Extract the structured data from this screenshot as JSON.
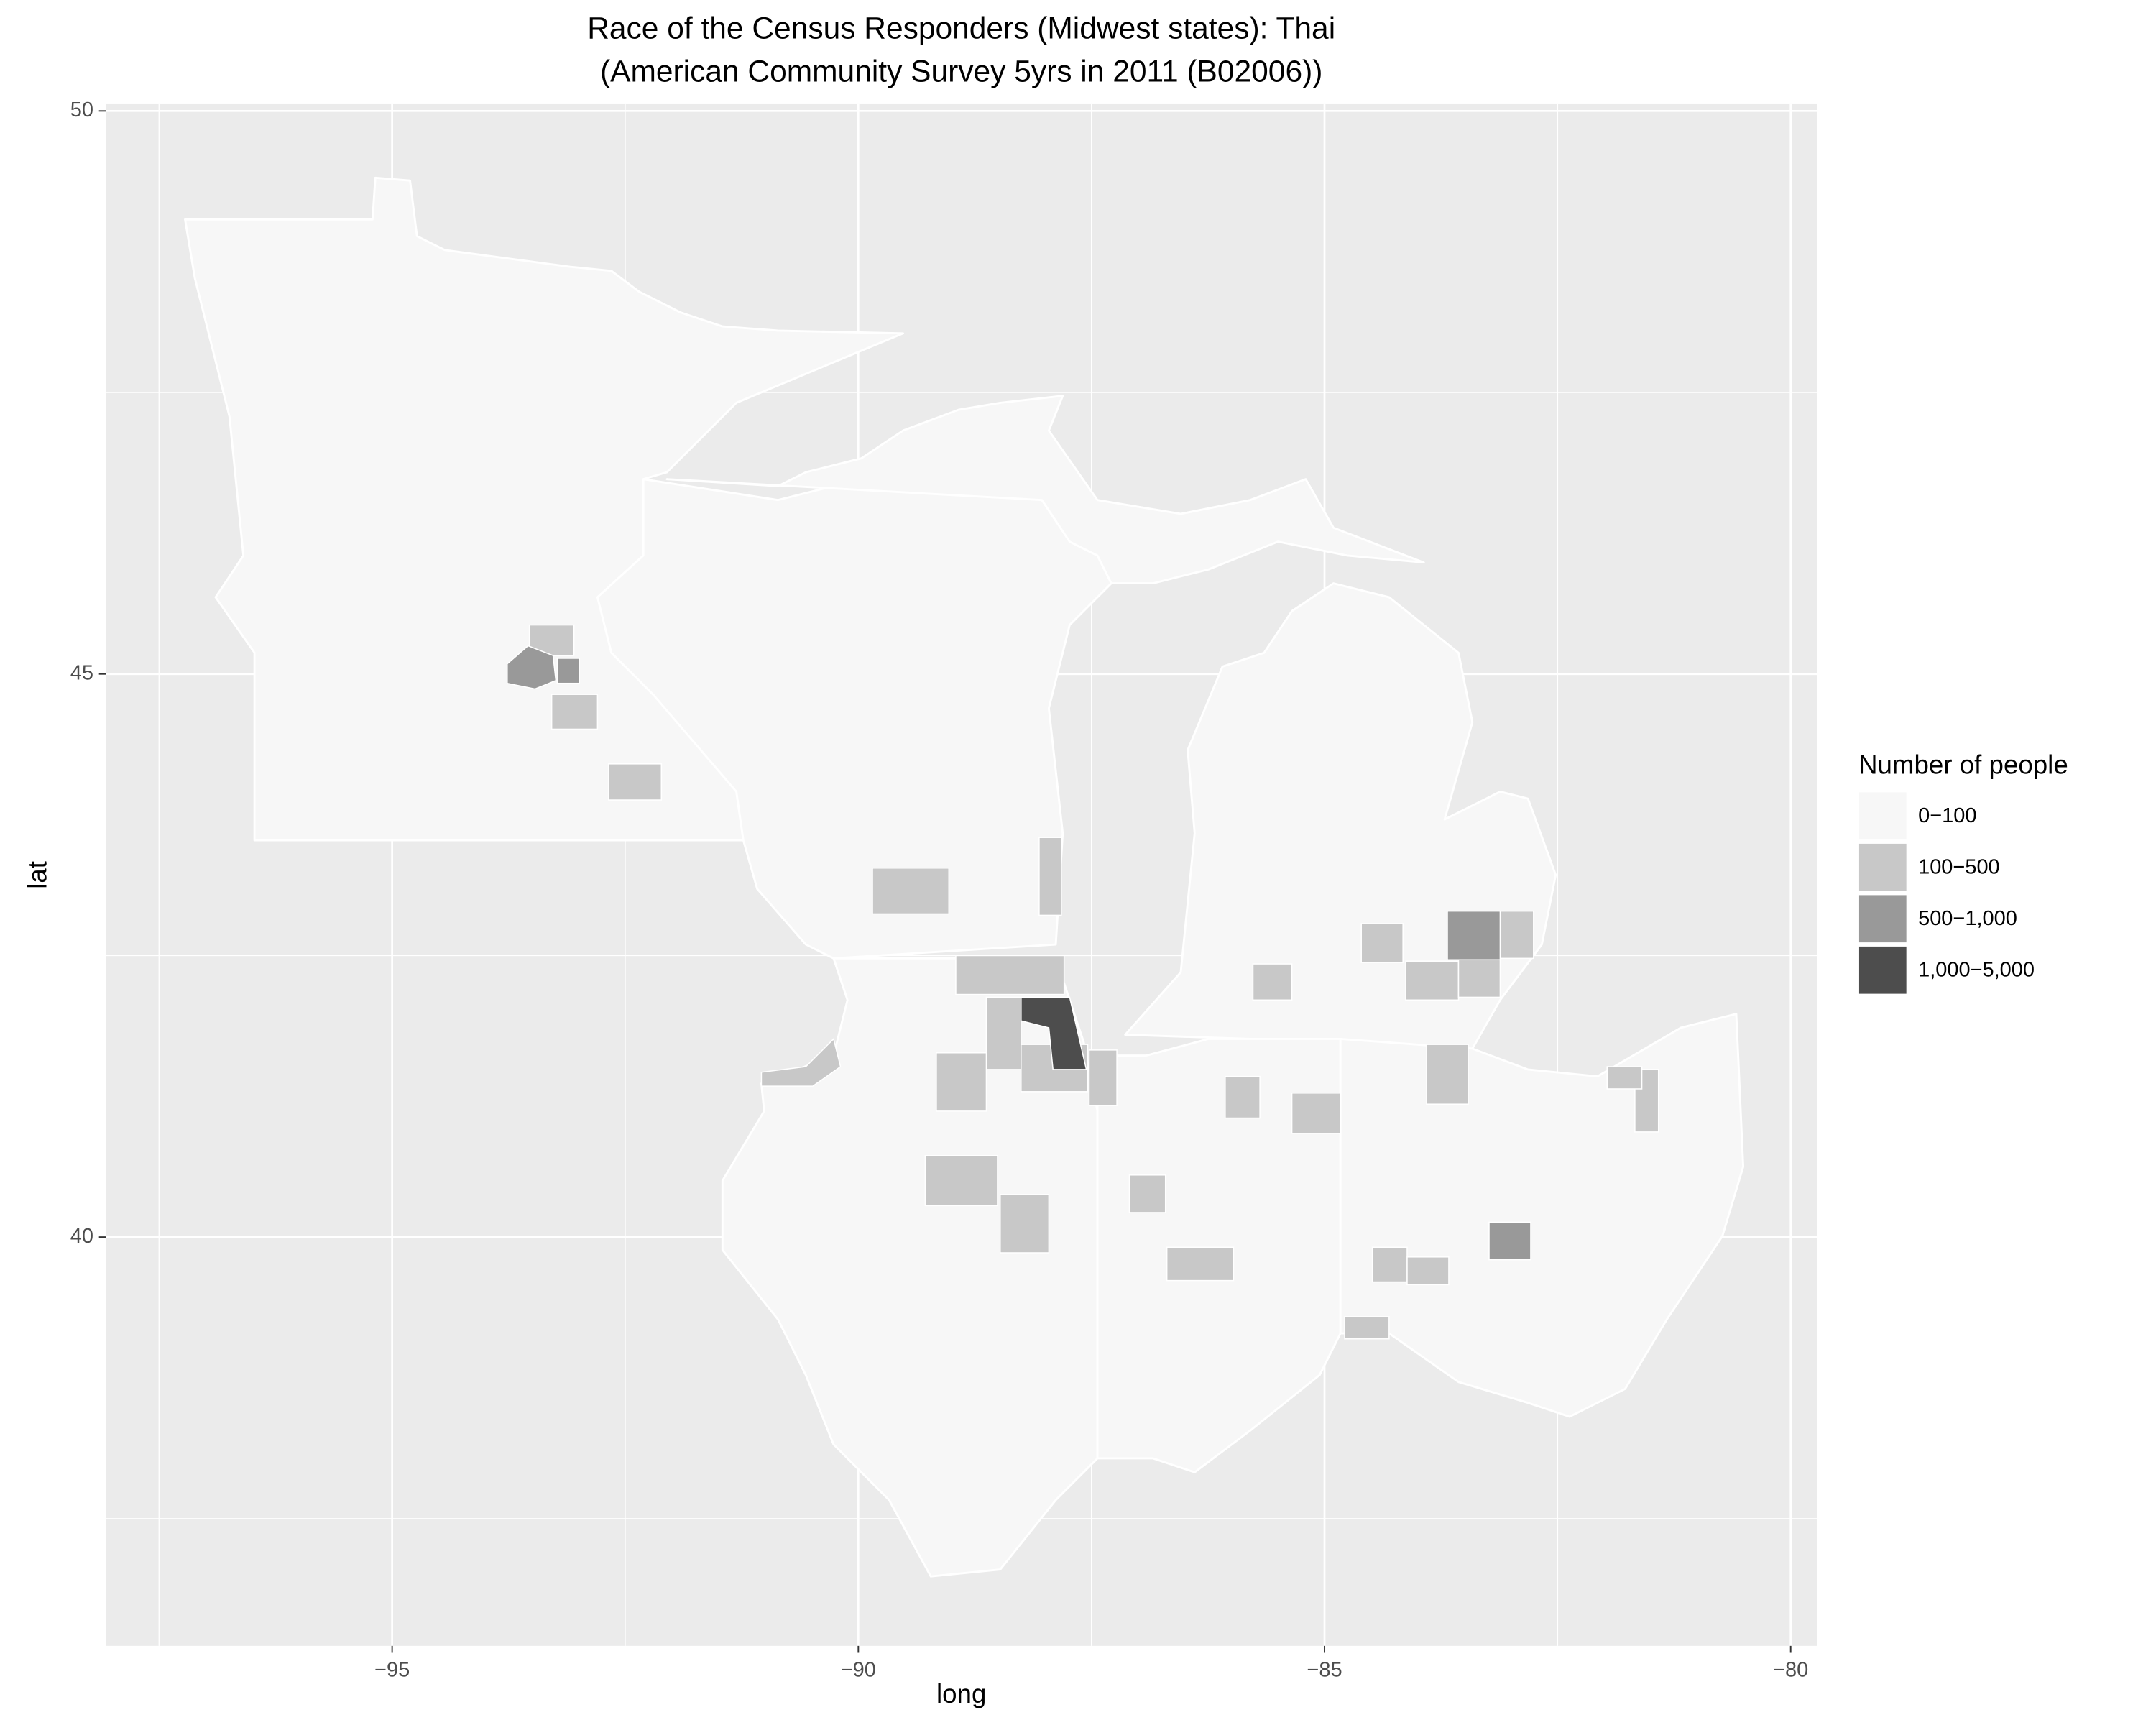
{
  "chart_data": {
    "type": "map",
    "title": "Race of the Census Responders (Midwest states): Thai",
    "subtitle": "(American Community Survey 5yrs in 2011 (B02006))",
    "x_label": "long",
    "y_label": "lat",
    "xlim": [
      -98.07,
      -79.72
    ],
    "ylim": [
      36.37,
      50.06
    ],
    "xticks": [
      {
        "value": -95,
        "label": "−95"
      },
      {
        "value": -90,
        "label": "−90"
      },
      {
        "value": -85,
        "label": "−85"
      },
      {
        "value": -80,
        "label": "−80"
      }
    ],
    "yticks": [
      40,
      45,
      50
    ],
    "minor_xticks": [
      -97.5,
      -92.5,
      -87.5,
      -82.5
    ],
    "minor_yticks": [
      37.5,
      42.5,
      47.5
    ],
    "grid": true,
    "legend": {
      "title": "Number of people",
      "position": "right",
      "items": [
        {
          "label": "0−100",
          "color": "#f7f7f7"
        },
        {
          "label": "100−500",
          "color": "#c8c8c8"
        },
        {
          "label": "500−1,000",
          "color": "#999999"
        },
        {
          "label": "1,000−5,000",
          "color": "#4d4d4d"
        }
      ]
    }
  }
}
